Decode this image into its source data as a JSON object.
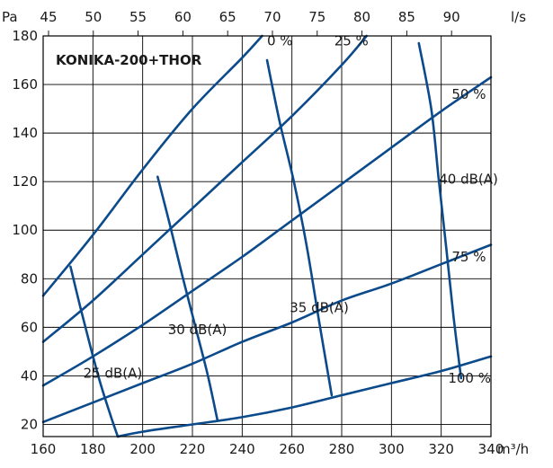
{
  "chart_data": {
    "type": "line",
    "title": "KONIKA-200+THOR",
    "xlabel": "m³/h",
    "ylabel": "Pa",
    "x2label": "l/s",
    "xlim": [
      160,
      340
    ],
    "ylim": [
      15,
      180
    ],
    "x2lim": [
      44.4,
      94.4
    ],
    "xticks": [
      160,
      180,
      200,
      220,
      240,
      260,
      280,
      300,
      320,
      340
    ],
    "yticks": [
      20,
      40,
      60,
      80,
      100,
      120,
      140,
      160,
      180
    ],
    "x2ticks": [
      45,
      50,
      55,
      60,
      65,
      70,
      75,
      80,
      85,
      90
    ],
    "grid": true,
    "series": [
      {
        "name": "0 %",
        "kind": "damper",
        "label": "0 %",
        "label_at": [
          250,
          178
        ],
        "label_anchor": "start",
        "points": [
          [
            160,
            73
          ],
          [
            180,
            98
          ],
          [
            200,
            125
          ],
          [
            220,
            150
          ],
          [
            240,
            171
          ],
          [
            248,
            180
          ]
        ]
      },
      {
        "name": "25 %",
        "kind": "damper",
        "label": "25 %",
        "label_at": [
          277,
          178
        ],
        "label_anchor": "start",
        "points": [
          [
            160,
            54
          ],
          [
            180,
            71
          ],
          [
            200,
            90
          ],
          [
            220,
            109
          ],
          [
            240,
            128
          ],
          [
            260,
            147
          ],
          [
            280,
            168
          ],
          [
            290,
            180
          ]
        ]
      },
      {
        "name": "50 %",
        "kind": "damper",
        "label": "50 %",
        "label_at": [
          338,
          156
        ],
        "label_anchor": "end",
        "points": [
          [
            160,
            36
          ],
          [
            180,
            48
          ],
          [
            200,
            61
          ],
          [
            220,
            75
          ],
          [
            240,
            89
          ],
          [
            260,
            104
          ],
          [
            280,
            119
          ],
          [
            300,
            134
          ],
          [
            320,
            149
          ],
          [
            340,
            163
          ]
        ]
      },
      {
        "name": "75 %",
        "kind": "damper",
        "label": "75 %",
        "label_at": [
          338,
          89
        ],
        "label_anchor": "end",
        "points": [
          [
            160,
            21
          ],
          [
            180,
            29
          ],
          [
            200,
            37
          ],
          [
            220,
            45
          ],
          [
            240,
            54
          ],
          [
            260,
            62
          ],
          [
            280,
            71
          ],
          [
            300,
            78
          ],
          [
            320,
            86
          ],
          [
            340,
            94
          ]
        ]
      },
      {
        "name": "100 %",
        "kind": "damper",
        "label": "100 %",
        "label_at": [
          340,
          39
        ],
        "label_anchor": "end",
        "points": [
          [
            190,
            15
          ],
          [
            200,
            17
          ],
          [
            220,
            20
          ],
          [
            240,
            23
          ],
          [
            260,
            27
          ],
          [
            280,
            32
          ],
          [
            300,
            37
          ],
          [
            320,
            42
          ],
          [
            340,
            48
          ]
        ]
      },
      {
        "name": "25 dB(A)",
        "kind": "sound",
        "label": "25 dB(A)",
        "label_at": [
          188,
          41
        ],
        "label_anchor": "middle",
        "points": [
          [
            171,
            85
          ],
          [
            175,
            68
          ],
          [
            179,
            52
          ],
          [
            183,
            37
          ],
          [
            187,
            24
          ],
          [
            190,
            15
          ]
        ]
      },
      {
        "name": "30 dB(A)",
        "kind": "sound",
        "label": "30 dB(A)",
        "label_at": [
          222,
          59
        ],
        "label_anchor": "middle",
        "points": [
          [
            206,
            122
          ],
          [
            211,
            102
          ],
          [
            216,
            81
          ],
          [
            221,
            61
          ],
          [
            226,
            41
          ],
          [
            230,
            22
          ]
        ]
      },
      {
        "name": "35 dB(A)",
        "kind": "sound",
        "label": "35 dB(A)",
        "label_at": [
          271,
          68
        ],
        "label_anchor": "middle",
        "points": [
          [
            250,
            170
          ],
          [
            255,
            145
          ],
          [
            261,
            119
          ],
          [
            266,
            93
          ],
          [
            271,
            62
          ],
          [
            276,
            32
          ]
        ]
      },
      {
        "name": "40 dB(A)",
        "kind": "sound",
        "label": "40 dB(A)",
        "label_at": [
          331,
          121
        ],
        "label_anchor": "middle",
        "points": [
          [
            311,
            177
          ],
          [
            316,
            150
          ],
          [
            319,
            121
          ],
          [
            322,
            93
          ],
          [
            325,
            64
          ],
          [
            328,
            39
          ]
        ]
      }
    ]
  }
}
